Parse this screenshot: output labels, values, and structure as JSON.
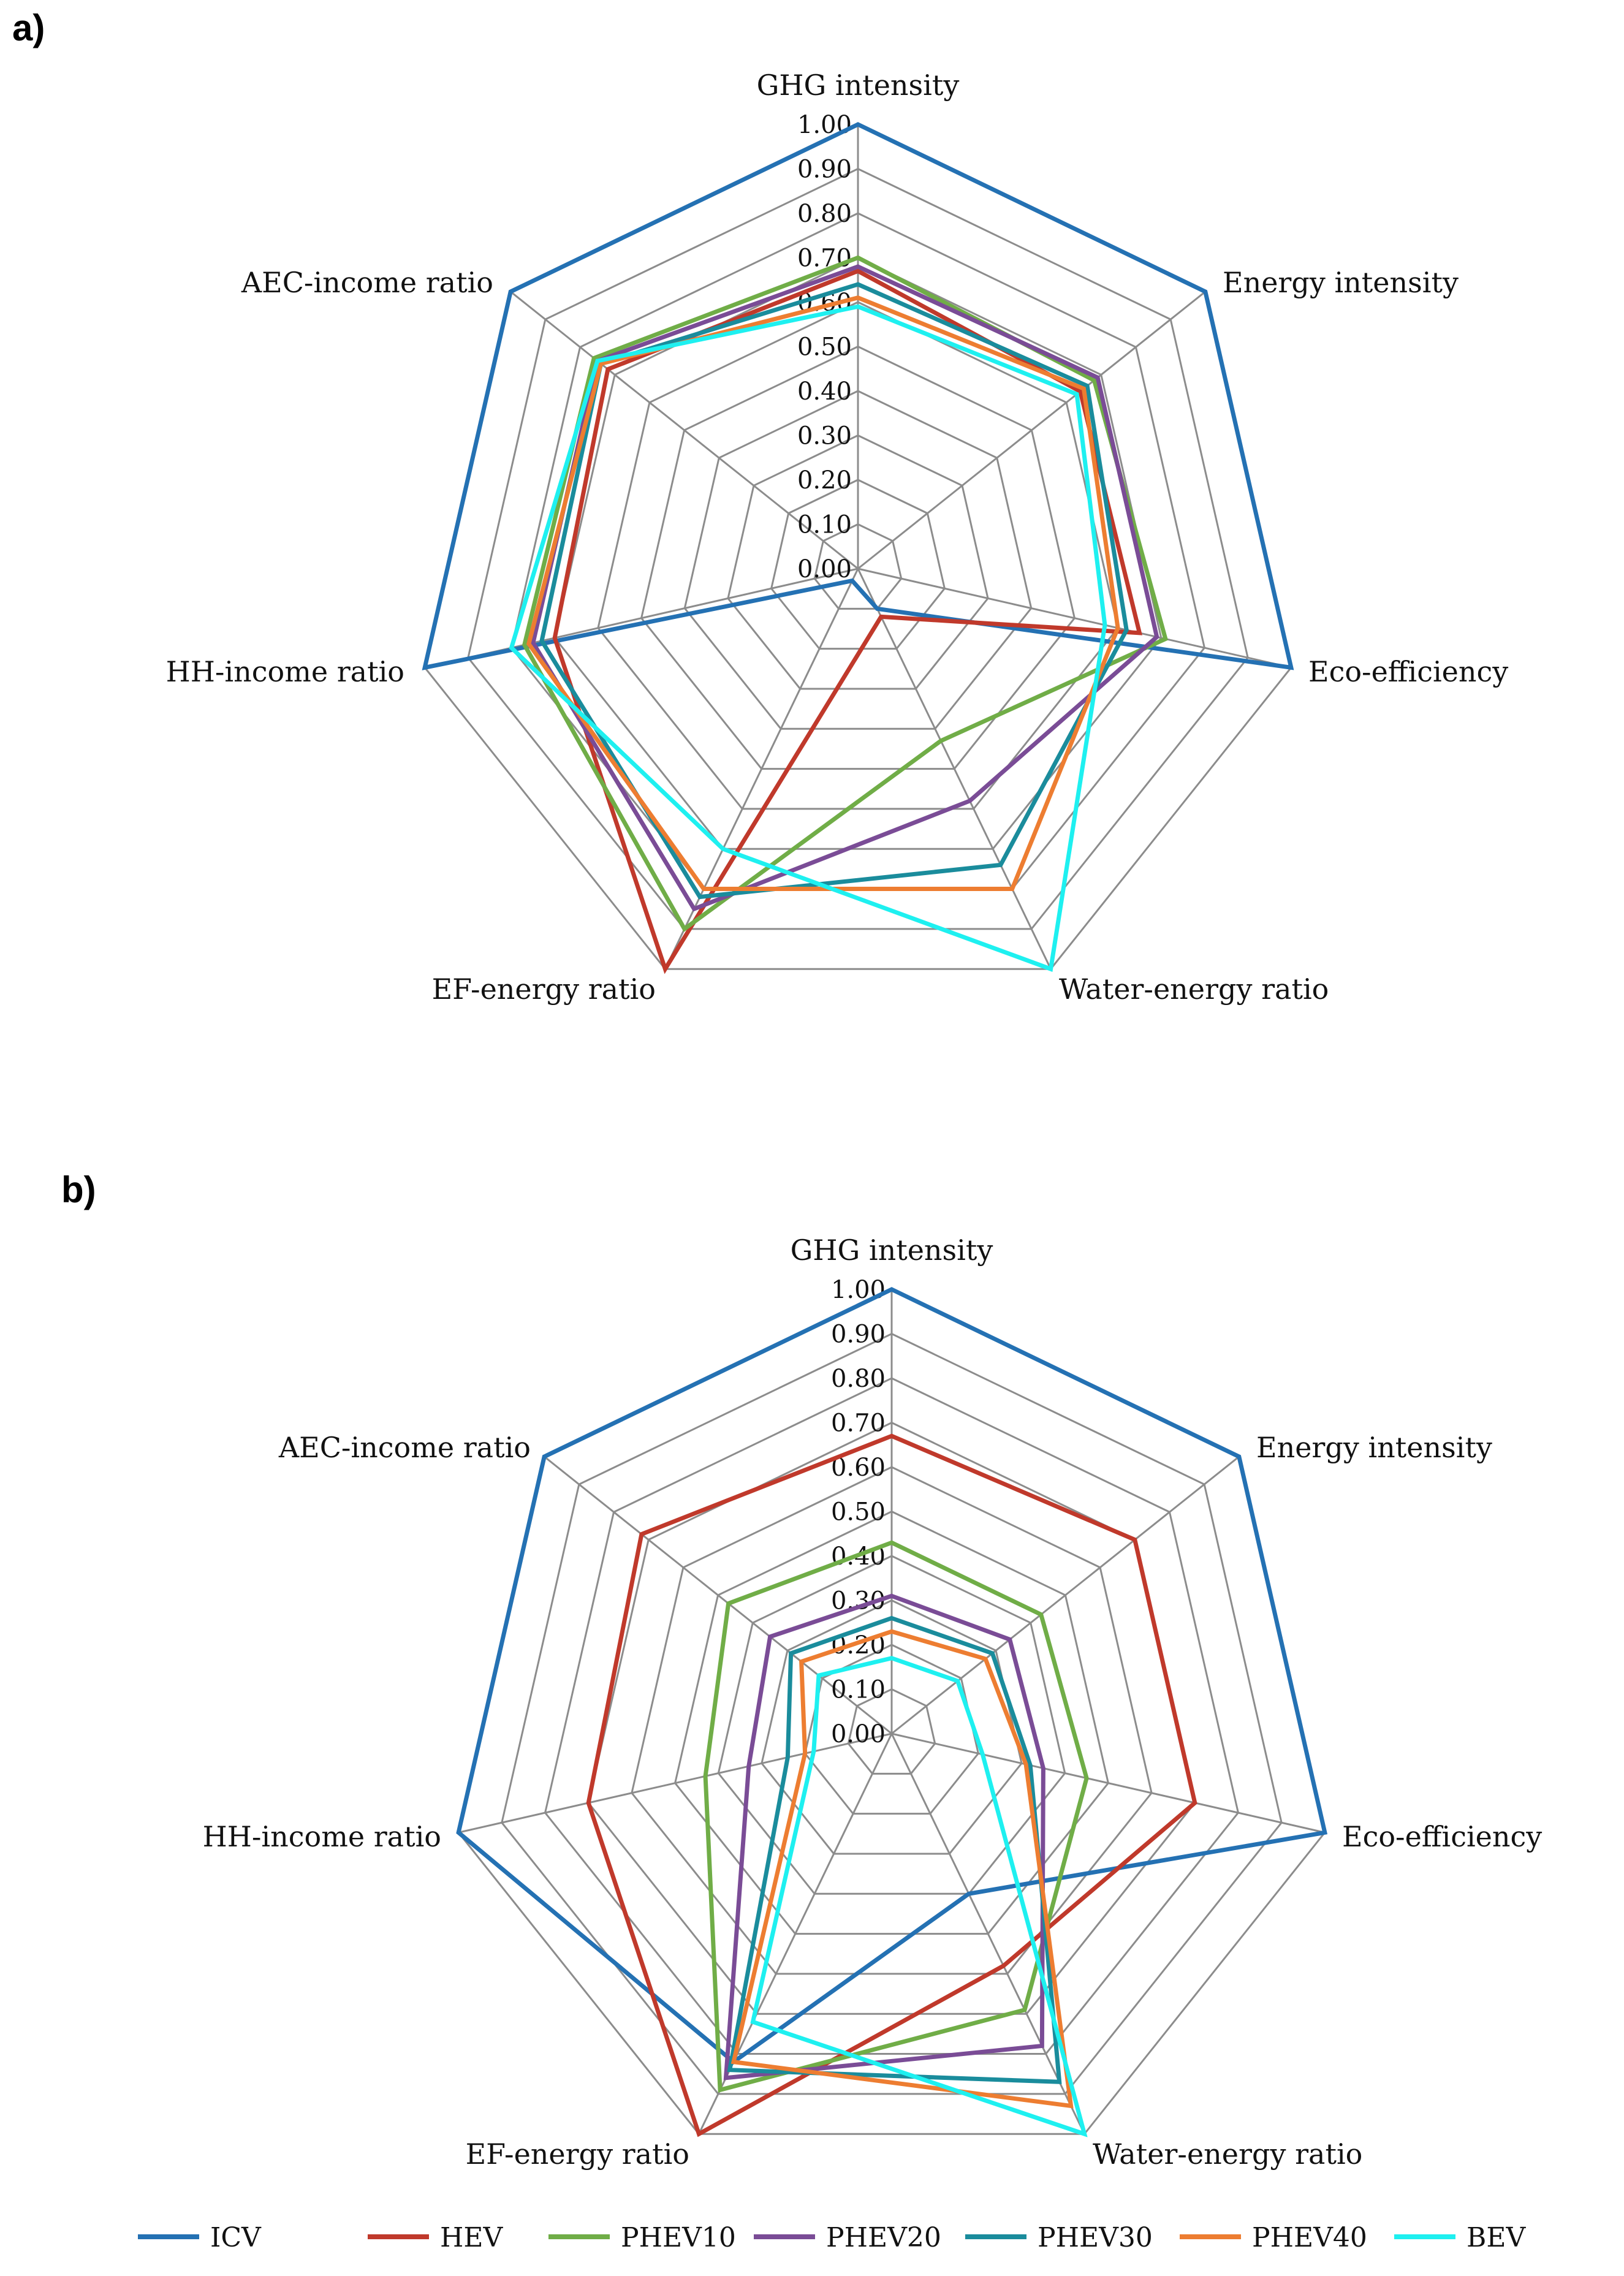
{
  "chart_data": [
    {
      "type": "radar",
      "panel_label": "a)",
      "axes": [
        "GHG intensity",
        "Energy intensity",
        "Eco-efficiency",
        "Water-energy ratio",
        "EF-energy ratio",
        "HH-income ratio",
        "AEC-income ratio"
      ],
      "ticks": [
        "1.00",
        "0.90",
        "0.80",
        "0.70",
        "0.60",
        "0.50",
        "0.40",
        "0.30",
        "0.20",
        "0.10",
        "0.00"
      ],
      "range": [
        0,
        1
      ],
      "series": [
        {
          "name": "ICV",
          "color": "#2471b3",
          "values": [
            1.0,
            1.0,
            1.0,
            0.1,
            0.03,
            1.0,
            1.0
          ]
        },
        {
          "name": "HEV",
          "color": "#c0392b",
          "values": [
            0.67,
            0.64,
            0.65,
            0.12,
            1.0,
            0.7,
            0.72
          ]
        },
        {
          "name": "PHEV10",
          "color": "#70ad47",
          "values": [
            0.7,
            0.68,
            0.71,
            0.43,
            0.9,
            0.77,
            0.76
          ]
        },
        {
          "name": "PHEV20",
          "color": "#7a4c96",
          "values": [
            0.68,
            0.69,
            0.69,
            0.58,
            0.85,
            0.75,
            0.75
          ]
        },
        {
          "name": "PHEV30",
          "color": "#1a8c9c",
          "values": [
            0.64,
            0.66,
            0.62,
            0.74,
            0.82,
            0.73,
            0.74
          ]
        },
        {
          "name": "PHEV40",
          "color": "#ed7d31",
          "values": [
            0.61,
            0.65,
            0.6,
            0.8,
            0.8,
            0.76,
            0.74
          ]
        },
        {
          "name": "BEV",
          "color": "#1ef0f0",
          "values": [
            0.59,
            0.63,
            0.57,
            1.0,
            0.7,
            0.8,
            0.75
          ]
        }
      ]
    },
    {
      "type": "radar",
      "panel_label": "b)",
      "axes": [
        "GHG intensity",
        "Energy intensity",
        "Eco-efficiency",
        "Water-energy ratio",
        "EF-energy ratio",
        "HH-income ratio",
        "AEC-income ratio"
      ],
      "ticks": [
        "1.00",
        "0.90",
        "0.80",
        "0.70",
        "0.60",
        "0.50",
        "0.40",
        "0.30",
        "0.20",
        "0.10",
        "0.00"
      ],
      "range": [
        0,
        1
      ],
      "series": [
        {
          "name": "ICV",
          "color": "#2471b3",
          "values": [
            1.0,
            1.0,
            1.0,
            0.4,
            0.82,
            1.0,
            1.0
          ]
        },
        {
          "name": "HEV",
          "color": "#c0392b",
          "values": [
            0.67,
            0.7,
            0.7,
            0.58,
            1.0,
            0.7,
            0.72
          ]
        },
        {
          "name": "PHEV10",
          "color": "#70ad47",
          "values": [
            0.43,
            0.43,
            0.45,
            0.69,
            0.89,
            0.43,
            0.47
          ]
        },
        {
          "name": "PHEV20",
          "color": "#7a4c96",
          "values": [
            0.31,
            0.34,
            0.35,
            0.78,
            0.86,
            0.33,
            0.35
          ]
        },
        {
          "name": "PHEV30",
          "color": "#1a8c9c",
          "values": [
            0.26,
            0.29,
            0.32,
            0.87,
            0.84,
            0.24,
            0.29
          ]
        },
        {
          "name": "PHEV40",
          "color": "#ed7d31",
          "values": [
            0.23,
            0.27,
            0.31,
            0.93,
            0.82,
            0.2,
            0.26
          ]
        },
        {
          "name": "BEV",
          "color": "#1ef0f0",
          "values": [
            0.17,
            0.19,
            0.21,
            1.0,
            0.72,
            0.18,
            0.21
          ]
        }
      ]
    }
  ],
  "legend": [
    "ICV",
    "HEV",
    "PHEV10",
    "PHEV20",
    "PHEV30",
    "PHEV40",
    "BEV"
  ]
}
